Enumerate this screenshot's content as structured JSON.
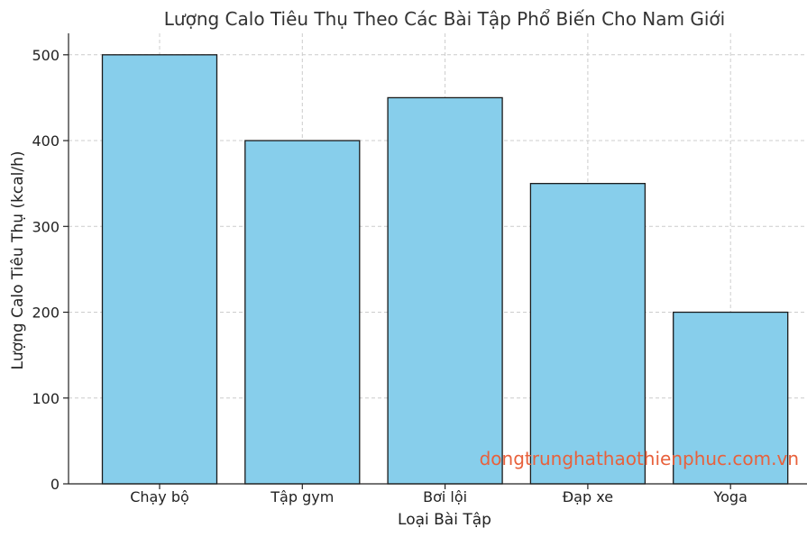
{
  "chart_data": {
    "type": "bar",
    "title": "Lượng Calo Tiêu Thụ Theo Các Bài Tập Phổ Biến Cho Nam Giới",
    "xlabel": "Loại Bài Tập",
    "ylabel": "Lượng Calo Tiêu Thụ (kcal/h)",
    "categories": [
      "Chạy bộ",
      "Tập gym",
      "Bơi lội",
      "Đạp xe",
      "Yoga"
    ],
    "values": [
      500,
      400,
      450,
      350,
      200
    ],
    "ylim": [
      0,
      525
    ],
    "yticks": [
      0,
      100,
      200,
      300,
      400,
      500
    ],
    "grid": true,
    "bar_color": "#87ceeb",
    "edge_color": "#1a1a1a"
  },
  "watermark": {
    "text": "dongtrunghathaothienphuc.com.vn",
    "color": "#e8613c"
  }
}
